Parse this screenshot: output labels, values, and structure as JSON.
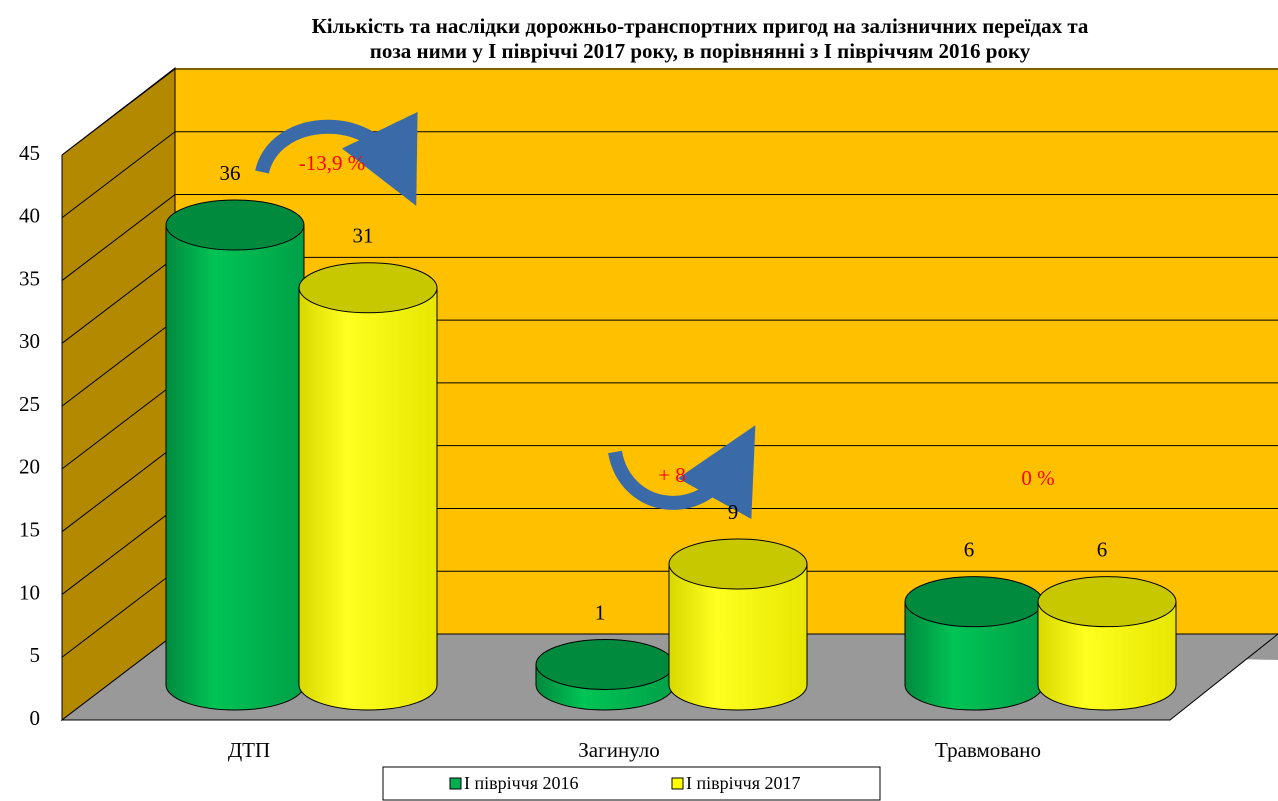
{
  "chart_data": {
    "type": "bar3d",
    "title": [
      "Кількість та наслідки дорожньо-транспортних пригод на залізничних переїдах та",
      "поза ними у І півріччі 2017 року, в порівнянні з І півріччям 2016 року"
    ],
    "categories": [
      "ДТП",
      "Загинуло",
      "Травмовано"
    ],
    "series": [
      {
        "name": "І півріччя 2016",
        "color": "#00b050",
        "values": [
          36,
          1,
          6
        ]
      },
      {
        "name": "І півріччя 2017",
        "color": "#ffff00",
        "values": [
          31,
          9,
          6
        ]
      }
    ],
    "annotations": [
      "-13,9 %",
      "+ 8",
      "0 %"
    ],
    "ylim": [
      0,
      45
    ],
    "yticks": [
      0,
      5,
      10,
      15,
      20,
      25,
      30,
      35,
      40,
      45
    ],
    "grid": true,
    "legend": "bottom"
  }
}
